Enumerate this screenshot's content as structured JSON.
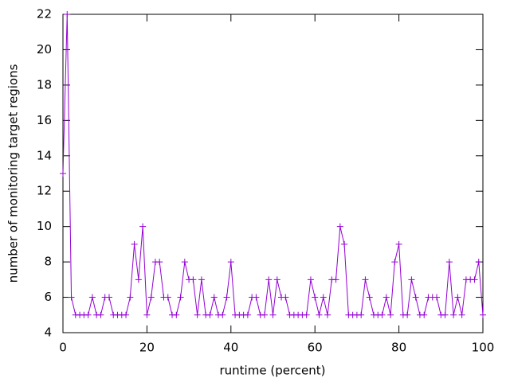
{
  "chart_data": {
    "type": "line",
    "xlabel": "runtime (percent)",
    "ylabel": "number of monitoring target regions",
    "x": [
      0,
      1,
      2,
      3,
      4,
      5,
      6,
      7,
      8,
      9,
      10,
      11,
      12,
      13,
      14,
      15,
      16,
      17,
      18,
      19,
      20,
      21,
      22,
      23,
      24,
      25,
      26,
      27,
      28,
      29,
      30,
      31,
      32,
      33,
      34,
      35,
      36,
      37,
      38,
      39,
      40,
      41,
      42,
      43,
      44,
      45,
      46,
      47,
      48,
      49,
      50,
      51,
      52,
      53,
      54,
      55,
      56,
      57,
      58,
      59,
      60,
      61,
      62,
      63,
      64,
      65,
      66,
      67,
      68,
      69,
      70,
      71,
      72,
      73,
      74,
      75,
      76,
      77,
      78,
      79,
      80,
      81,
      82,
      83,
      84,
      85,
      86,
      87,
      88,
      89,
      90,
      91,
      92,
      93,
      94,
      95,
      96,
      97,
      98,
      99,
      100
    ],
    "series": [
      {
        "color": "#9400d3",
        "values": [
          13,
          22,
          6,
          5,
          5,
          5,
          5,
          6,
          5,
          5,
          6,
          6,
          5,
          5,
          5,
          5,
          6,
          9,
          7,
          10,
          5,
          6,
          8,
          8,
          6,
          6,
          5,
          5,
          6,
          8,
          7,
          7,
          5,
          7,
          5,
          5,
          6,
          5,
          5,
          6,
          8,
          5,
          5,
          5,
          5,
          6,
          6,
          5,
          5,
          7,
          5,
          7,
          6,
          6,
          5,
          5,
          5,
          5,
          5,
          7,
          6,
          5,
          6,
          5,
          7,
          7,
          10,
          9,
          5,
          5,
          5,
          5,
          7,
          6,
          5,
          5,
          5,
          6,
          5,
          8,
          9,
          5,
          5,
          7,
          6,
          5,
          5,
          6,
          6,
          6,
          5,
          5,
          8,
          5,
          6,
          5,
          7,
          7,
          7,
          8,
          5
        ]
      }
    ],
    "xlim": [
      0,
      100
    ],
    "xticks": [
      0,
      20,
      40,
      60,
      80,
      100
    ],
    "ylim": [
      4,
      22
    ],
    "yticks": [
      4,
      6,
      8,
      10,
      12,
      14,
      16,
      18,
      20,
      22
    ]
  }
}
